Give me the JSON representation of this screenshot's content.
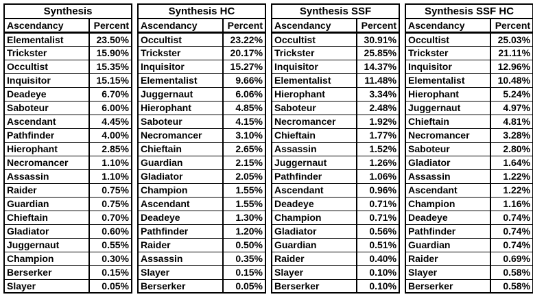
{
  "colors": {
    "background": "#ffffff",
    "border": "#000000",
    "text": "#000000"
  },
  "tables": [
    {
      "title": "Synthesis",
      "columns": [
        "Ascendancy",
        "Percent"
      ],
      "rows": [
        [
          "Elementalist",
          "23.50%"
        ],
        [
          "Trickster",
          "15.90%"
        ],
        [
          "Occultist",
          "15.35%"
        ],
        [
          "Inquisitor",
          "15.15%"
        ],
        [
          "Deadeye",
          "6.70%"
        ],
        [
          "Saboteur",
          "6.00%"
        ],
        [
          "Ascendant",
          "4.45%"
        ],
        [
          "Pathfinder",
          "4.00%"
        ],
        [
          "Hierophant",
          "2.85%"
        ],
        [
          "Necromancer",
          "1.10%"
        ],
        [
          "Assassin",
          "1.10%"
        ],
        [
          "Raider",
          "0.75%"
        ],
        [
          "Guardian",
          "0.75%"
        ],
        [
          "Chieftain",
          "0.70%"
        ],
        [
          "Gladiator",
          "0.60%"
        ],
        [
          "Juggernaut",
          "0.55%"
        ],
        [
          "Champion",
          "0.30%"
        ],
        [
          "Berserker",
          "0.15%"
        ],
        [
          "Slayer",
          "0.05%"
        ]
      ]
    },
    {
      "title": "Synthesis HC",
      "columns": [
        "Ascendancy",
        "Percent"
      ],
      "rows": [
        [
          "Occultist",
          "23.22%"
        ],
        [
          "Trickster",
          "20.17%"
        ],
        [
          "Inquisitor",
          "15.27%"
        ],
        [
          "Elementalist",
          "9.66%"
        ],
        [
          "Juggernaut",
          "6.06%"
        ],
        [
          "Hierophant",
          "4.85%"
        ],
        [
          "Saboteur",
          "4.15%"
        ],
        [
          "Necromancer",
          "3.10%"
        ],
        [
          "Chieftain",
          "2.65%"
        ],
        [
          "Guardian",
          "2.15%"
        ],
        [
          "Gladiator",
          "2.05%"
        ],
        [
          "Champion",
          "1.55%"
        ],
        [
          "Ascendant",
          "1.55%"
        ],
        [
          "Deadeye",
          "1.30%"
        ],
        [
          "Pathfinder",
          "1.20%"
        ],
        [
          "Raider",
          "0.50%"
        ],
        [
          "Assassin",
          "0.35%"
        ],
        [
          "Slayer",
          "0.15%"
        ],
        [
          "Berserker",
          "0.05%"
        ]
      ]
    },
    {
      "title": "Synthesis SSF",
      "columns": [
        "Ascendancy",
        "Percent"
      ],
      "rows": [
        [
          "Occultist",
          "30.91%"
        ],
        [
          "Trickster",
          "25.85%"
        ],
        [
          "Inquisitor",
          "14.37%"
        ],
        [
          "Elementalist",
          "11.48%"
        ],
        [
          "Hierophant",
          "3.34%"
        ],
        [
          "Saboteur",
          "2.48%"
        ],
        [
          "Necromancer",
          "1.92%"
        ],
        [
          "Chieftain",
          "1.77%"
        ],
        [
          "Assassin",
          "1.52%"
        ],
        [
          "Juggernaut",
          "1.26%"
        ],
        [
          "Pathfinder",
          "1.06%"
        ],
        [
          "Ascendant",
          "0.96%"
        ],
        [
          "Deadeye",
          "0.71%"
        ],
        [
          "Champion",
          "0.71%"
        ],
        [
          "Gladiator",
          "0.56%"
        ],
        [
          "Guardian",
          "0.51%"
        ],
        [
          "Raider",
          "0.40%"
        ],
        [
          "Slayer",
          "0.10%"
        ],
        [
          "Berserker",
          "0.10%"
        ]
      ]
    },
    {
      "title": "Synthesis SSF HC",
      "columns": [
        "Ascendancy",
        "Percent"
      ],
      "rows": [
        [
          "Occultist",
          "25.03%"
        ],
        [
          "Trickster",
          "21.11%"
        ],
        [
          "Inquisitor",
          "12.96%"
        ],
        [
          "Elementalist",
          "10.48%"
        ],
        [
          "Hierophant",
          "5.24%"
        ],
        [
          "Juggernaut",
          "4.97%"
        ],
        [
          "Chieftain",
          "4.81%"
        ],
        [
          "Necromancer",
          "3.28%"
        ],
        [
          "Saboteur",
          "2.80%"
        ],
        [
          "Gladiator",
          "1.64%"
        ],
        [
          "Assassin",
          "1.22%"
        ],
        [
          "Ascendant",
          "1.22%"
        ],
        [
          "Champion",
          "1.16%"
        ],
        [
          "Deadeye",
          "0.74%"
        ],
        [
          "Pathfinder",
          "0.74%"
        ],
        [
          "Guardian",
          "0.74%"
        ],
        [
          "Raider",
          "0.69%"
        ],
        [
          "Slayer",
          "0.58%"
        ],
        [
          "Berserker",
          "0.58%"
        ]
      ]
    }
  ],
  "chart_data": [
    {
      "type": "table",
      "title": "Synthesis",
      "categories": [
        "Elementalist",
        "Trickster",
        "Occultist",
        "Inquisitor",
        "Deadeye",
        "Saboteur",
        "Ascendant",
        "Pathfinder",
        "Hierophant",
        "Necromancer",
        "Assassin",
        "Raider",
        "Guardian",
        "Chieftain",
        "Gladiator",
        "Juggernaut",
        "Champion",
        "Berserker",
        "Slayer"
      ],
      "values": [
        23.5,
        15.9,
        15.35,
        15.15,
        6.7,
        6.0,
        4.45,
        4.0,
        2.85,
        1.1,
        1.1,
        0.75,
        0.75,
        0.7,
        0.6,
        0.55,
        0.3,
        0.15,
        0.05
      ],
      "xlabel": "Ascendancy",
      "ylabel": "Percent"
    },
    {
      "type": "table",
      "title": "Synthesis HC",
      "categories": [
        "Occultist",
        "Trickster",
        "Inquisitor",
        "Elementalist",
        "Juggernaut",
        "Hierophant",
        "Saboteur",
        "Necromancer",
        "Chieftain",
        "Guardian",
        "Gladiator",
        "Champion",
        "Ascendant",
        "Deadeye",
        "Pathfinder",
        "Raider",
        "Assassin",
        "Slayer",
        "Berserker"
      ],
      "values": [
        23.22,
        20.17,
        15.27,
        9.66,
        6.06,
        4.85,
        4.15,
        3.1,
        2.65,
        2.15,
        2.05,
        1.55,
        1.55,
        1.3,
        1.2,
        0.5,
        0.35,
        0.15,
        0.05
      ],
      "xlabel": "Ascendancy",
      "ylabel": "Percent"
    },
    {
      "type": "table",
      "title": "Synthesis SSF",
      "categories": [
        "Occultist",
        "Trickster",
        "Inquisitor",
        "Elementalist",
        "Hierophant",
        "Saboteur",
        "Necromancer",
        "Chieftain",
        "Assassin",
        "Juggernaut",
        "Pathfinder",
        "Ascendant",
        "Deadeye",
        "Champion",
        "Gladiator",
        "Guardian",
        "Raider",
        "Slayer",
        "Berserker"
      ],
      "values": [
        30.91,
        25.85,
        14.37,
        11.48,
        3.34,
        2.48,
        1.92,
        1.77,
        1.52,
        1.26,
        1.06,
        0.96,
        0.71,
        0.71,
        0.56,
        0.51,
        0.4,
        0.1,
        0.1
      ],
      "xlabel": "Ascendancy",
      "ylabel": "Percent"
    },
    {
      "type": "table",
      "title": "Synthesis SSF HC",
      "categories": [
        "Occultist",
        "Trickster",
        "Inquisitor",
        "Elementalist",
        "Hierophant",
        "Juggernaut",
        "Chieftain",
        "Necromancer",
        "Saboteur",
        "Gladiator",
        "Assassin",
        "Ascendant",
        "Champion",
        "Deadeye",
        "Pathfinder",
        "Guardian",
        "Raider",
        "Slayer",
        "Berserker"
      ],
      "values": [
        25.03,
        21.11,
        12.96,
        10.48,
        5.24,
        4.97,
        4.81,
        3.28,
        2.8,
        1.64,
        1.22,
        1.22,
        1.16,
        0.74,
        0.74,
        0.74,
        0.69,
        0.58,
        0.58
      ],
      "xlabel": "Ascendancy",
      "ylabel": "Percent"
    }
  ]
}
